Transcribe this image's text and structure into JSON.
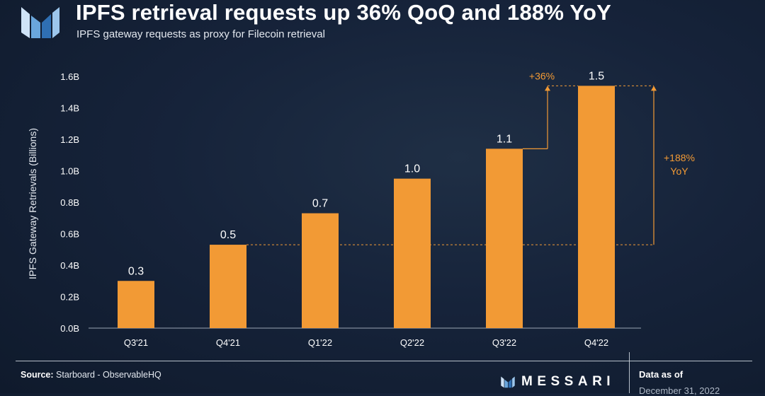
{
  "header": {
    "title": "IPFS retrieval requests up 36% QoQ and 188% YoY",
    "subtitle": "IPFS gateway requests as proxy for Filecoin retrieval"
  },
  "footer": {
    "source_label": "Source:",
    "source_text": "Starboard - ObservableHQ",
    "brand": "MESSARI",
    "data_as_of_label": "Data as of",
    "data_as_of_date": "December 31, 2022"
  },
  "colors": {
    "bar": "#f29a35",
    "annotation": "#f29a35",
    "background": "#16233a",
    "logo_light": "#cfe3f7",
    "logo_mid": "#6aa6dc",
    "logo_dark": "#2f6fb3"
  },
  "chart_data": {
    "type": "bar",
    "title": "IPFS retrieval requests up 36% QoQ and 188% YoY",
    "subtitle": "IPFS gateway requests as proxy for Filecoin retrieval",
    "ylabel": "IPFS Gateway Retrievals (Billions)",
    "xlabel": "",
    "categories": [
      "Q3'21",
      "Q4'21",
      "Q1'22",
      "Q2'22",
      "Q3'22",
      "Q4'22"
    ],
    "values": [
      0.3,
      0.53,
      0.73,
      0.95,
      1.14,
      1.54
    ],
    "data_labels": [
      "0.3",
      "0.5",
      "0.7",
      "1.0",
      "1.1",
      "1.5"
    ],
    "ylim": [
      0,
      1.6
    ],
    "yticks": [
      0,
      0.2,
      0.4,
      0.6,
      0.8,
      1.0,
      1.2,
      1.4,
      1.6
    ],
    "ytick_labels": [
      "0.0B",
      "0.2B",
      "0.4B",
      "0.6B",
      "0.8B",
      "1.0B",
      "1.2B",
      "1.4B",
      "1.6B"
    ],
    "grid": false,
    "legend": "none",
    "annotations": [
      {
        "label": "+36%",
        "from_category": "Q3'22",
        "to_category": "Q4'22"
      },
      {
        "label": "+188%",
        "label2": "YoY",
        "from_category": "Q4'21",
        "to_category": "Q4'22"
      }
    ]
  }
}
